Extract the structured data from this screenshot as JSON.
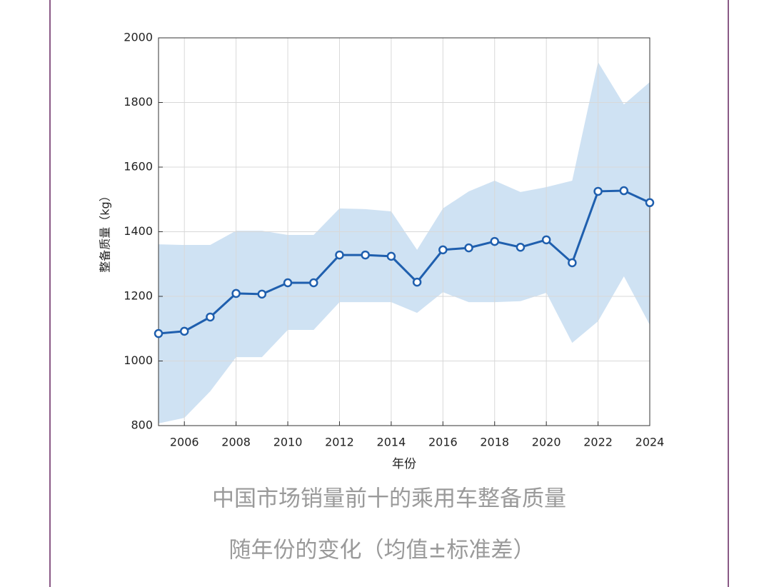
{
  "chart_data": {
    "type": "line",
    "x": [
      2005,
      2006,
      2007,
      2008,
      2009,
      2010,
      2011,
      2012,
      2013,
      2014,
      2015,
      2016,
      2017,
      2018,
      2019,
      2020,
      2021,
      2022,
      2023,
      2024
    ],
    "values": [
      1085,
      1092,
      1136,
      1209,
      1207,
      1242,
      1242,
      1328,
      1328,
      1324,
      1244,
      1344,
      1350,
      1370,
      1352,
      1375,
      1304,
      1525,
      1527,
      1490
    ],
    "band": {
      "upper": [
        1361,
        1359,
        1359,
        1403,
        1403,
        1390,
        1390,
        1472,
        1470,
        1463,
        1344,
        1472,
        1525,
        1558,
        1523,
        1538,
        1558,
        1925,
        1794,
        1863
      ],
      "lower": [
        807,
        824,
        906,
        1012,
        1012,
        1096,
        1096,
        1182,
        1182,
        1182,
        1149,
        1213,
        1182,
        1182,
        1185,
        1211,
        1056,
        1123,
        1262,
        1112
      ],
      "color": "#cfe2f3"
    },
    "color": "#1f5fae",
    "xlabel": "年份",
    "ylabel": "整备质量（kg）",
    "caption": [
      "中国市场销量前十的乘用车整备质量",
      "随年份的变化（均值±标准差）"
    ],
    "xlim": [
      2005,
      2024
    ],
    "xticks": [
      2006,
      2008,
      2010,
      2012,
      2014,
      2016,
      2018,
      2020,
      2022,
      2024
    ],
    "ylim": [
      800,
      2000
    ],
    "yticks": [
      800,
      1000,
      1200,
      1400,
      1600,
      1800,
      2000
    ],
    "grid": true
  }
}
